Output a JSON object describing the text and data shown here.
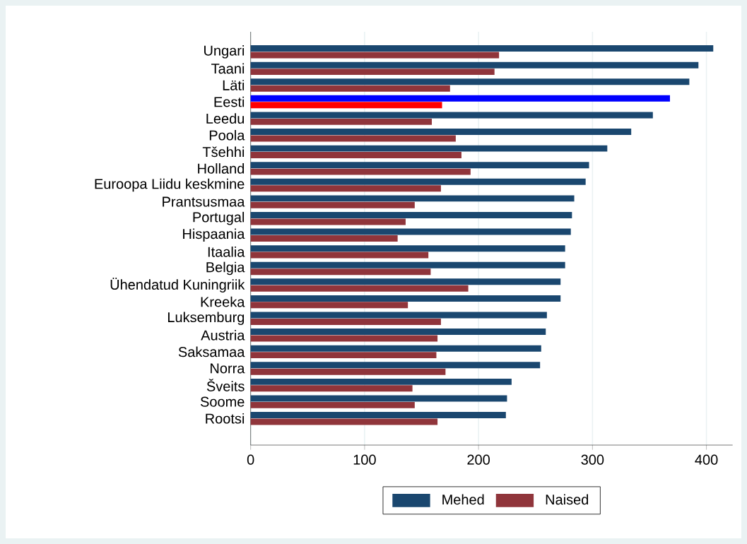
{
  "chart_data": {
    "type": "bar",
    "orientation": "horizontal",
    "categories": [
      "Ungari",
      "Taani",
      "Läti",
      "Eesti",
      "Leedu",
      "Poola",
      "Tšehhi",
      "Holland",
      "Euroopa Liidu keskmine",
      "Prantsusmaa",
      "Portugal",
      "Hispaania",
      "Itaalia",
      "Belgia",
      "Ühendatud Kuningriik",
      "Kreeka",
      "Luksemburg",
      "Austria",
      "Saksamaa",
      "Norra",
      "Šveits",
      "Soome",
      "Rootsi"
    ],
    "series": [
      {
        "name": "Mehed",
        "color": "#1a476f",
        "colors": [
          "#1a476f",
          "#1a476f",
          "#1a476f",
          "#0000ff",
          "#1a476f",
          "#1a476f",
          "#1a476f",
          "#1a476f",
          "#1a476f",
          "#1a476f",
          "#1a476f",
          "#1a476f",
          "#1a476f",
          "#1a476f",
          "#1a476f",
          "#1a476f",
          "#1a476f",
          "#1a476f",
          "#1a476f",
          "#1a476f",
          "#1a476f",
          "#1a476f",
          "#1a476f"
        ],
        "values": [
          406,
          393,
          385,
          368,
          353,
          334,
          313,
          297,
          294,
          284,
          282,
          281,
          276,
          276,
          272,
          272,
          260,
          259,
          255,
          254,
          229,
          225,
          224
        ]
      },
      {
        "name": "Naised",
        "color": "#90353b",
        "colors": [
          "#90353b",
          "#90353b",
          "#90353b",
          "#ff0000",
          "#90353b",
          "#90353b",
          "#90353b",
          "#90353b",
          "#90353b",
          "#90353b",
          "#90353b",
          "#90353b",
          "#90353b",
          "#90353b",
          "#90353b",
          "#90353b",
          "#90353b",
          "#90353b",
          "#90353b",
          "#90353b",
          "#90353b",
          "#90353b",
          "#90353b"
        ],
        "values": [
          218,
          214,
          175,
          168,
          159,
          180,
          185,
          193,
          167,
          144,
          136,
          129,
          156,
          158,
          191,
          138,
          167,
          164,
          163,
          171,
          142,
          144,
          164
        ]
      }
    ],
    "xlim": [
      0,
      423
    ],
    "xticks": [
      0,
      100,
      200,
      300,
      400
    ],
    "grid": "x",
    "legend": "bottom"
  }
}
